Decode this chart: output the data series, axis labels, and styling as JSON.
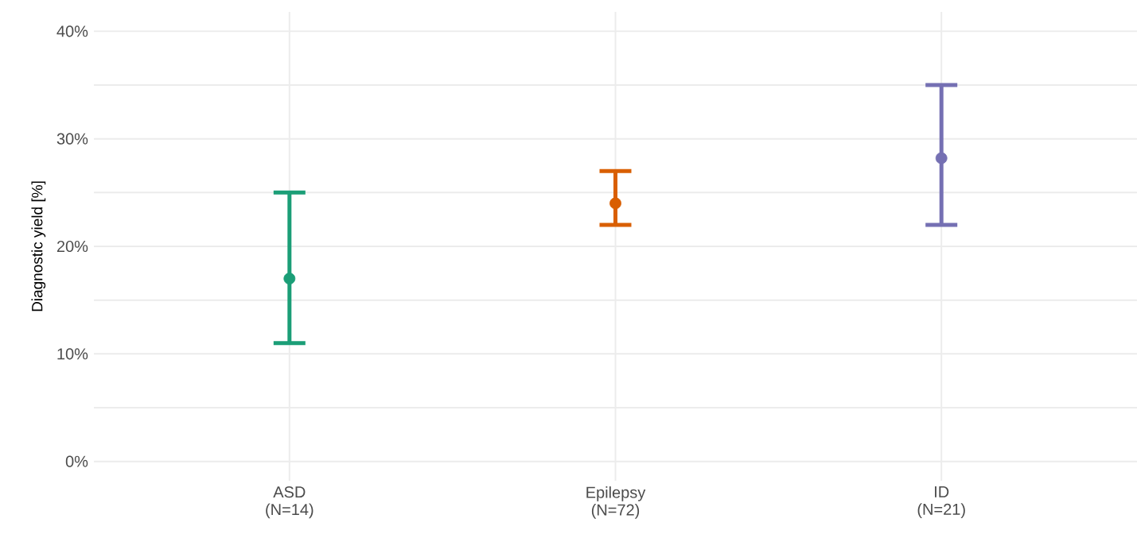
{
  "chart_data": {
    "type": "scatter",
    "ylabel": "Diagnostic yield [%]",
    "categories": [
      "ASD (N=14)",
      "Epilepsy (N=72)",
      "ID (N=21)"
    ],
    "values": [
      17,
      24,
      28.2
    ],
    "errors": [
      [
        11,
        25
      ],
      [
        22,
        27
      ],
      [
        22,
        35
      ]
    ],
    "colors": [
      "#1b9e77",
      "#d95f02",
      "#7570b3"
    ],
    "marker": "circle",
    "ylim": [
      -1.8,
      41.8
    ],
    "yticks": [
      {
        "value": 0,
        "label": "0%"
      },
      {
        "value": 5,
        "label": null
      },
      {
        "value": 10,
        "label": "10%"
      },
      {
        "value": 15,
        "label": null
      },
      {
        "value": 20,
        "label": "20%"
      },
      {
        "value": 25,
        "label": null
      },
      {
        "value": 30,
        "label": "30%"
      },
      {
        "value": 35,
        "label": null
      },
      {
        "value": 40,
        "label": "40%"
      }
    ],
    "grid": true
  }
}
